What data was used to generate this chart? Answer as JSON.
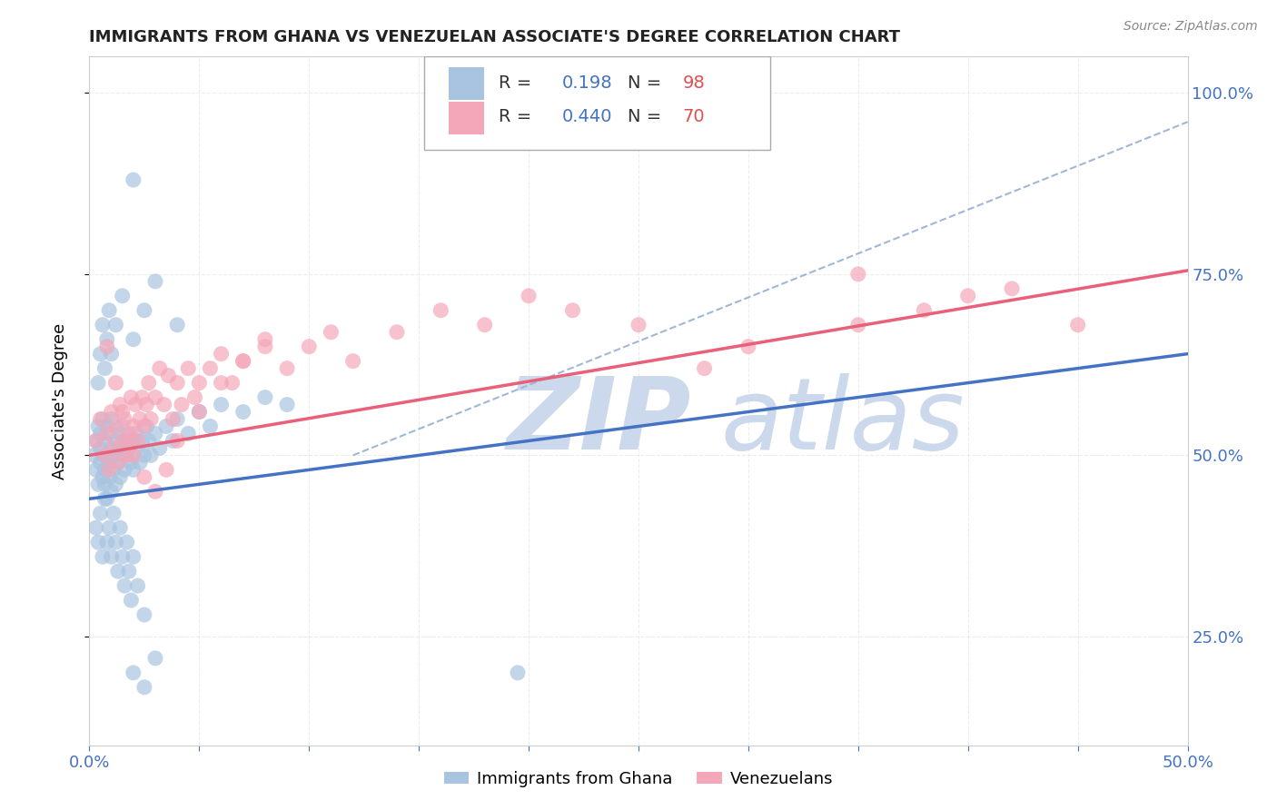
{
  "title": "IMMIGRANTS FROM GHANA VS VENEZUELAN ASSOCIATE'S DEGREE CORRELATION CHART",
  "source": "Source: ZipAtlas.com",
  "ylabel": "Associate's Degree",
  "yticks": [
    "25.0%",
    "50.0%",
    "75.0%",
    "100.0%"
  ],
  "ytick_vals": [
    0.25,
    0.5,
    0.75,
    1.0
  ],
  "xlim": [
    0.0,
    0.5
  ],
  "ylim": [
    0.1,
    1.05
  ],
  "ghana_color": "#a8c4e0",
  "venezuela_color": "#f4a7b9",
  "ghana_line_color": "#4472c4",
  "venezuela_line_color": "#e8607a",
  "dashed_line_color": "#a0b8d8",
  "ghana_R": 0.198,
  "ghana_N": 98,
  "venezuela_R": 0.44,
  "venezuela_N": 70,
  "legend_R_color": "#4472c4",
  "legend_N_color": "#e05050",
  "background_color": "#ffffff",
  "grid_color": "#e8e8e8",
  "tick_color": "#4472c4",
  "watermark_zip": "ZIP",
  "watermark_atlas": "atlas",
  "watermark_color": "#ccd9ec",
  "ghana_scatter_x": [
    0.002,
    0.003,
    0.003,
    0.004,
    0.004,
    0.005,
    0.005,
    0.005,
    0.006,
    0.006,
    0.006,
    0.007,
    0.007,
    0.007,
    0.008,
    0.008,
    0.008,
    0.009,
    0.009,
    0.009,
    0.01,
    0.01,
    0.01,
    0.011,
    0.011,
    0.012,
    0.012,
    0.013,
    0.013,
    0.014,
    0.014,
    0.015,
    0.015,
    0.016,
    0.016,
    0.017,
    0.018,
    0.019,
    0.02,
    0.02,
    0.021,
    0.022,
    0.023,
    0.024,
    0.025,
    0.026,
    0.027,
    0.028,
    0.03,
    0.032,
    0.035,
    0.038,
    0.04,
    0.045,
    0.05,
    0.055,
    0.06,
    0.07,
    0.08,
    0.09,
    0.003,
    0.004,
    0.005,
    0.006,
    0.007,
    0.008,
    0.009,
    0.01,
    0.011,
    0.012,
    0.013,
    0.014,
    0.015,
    0.016,
    0.017,
    0.018,
    0.019,
    0.02,
    0.022,
    0.025,
    0.004,
    0.005,
    0.006,
    0.007,
    0.008,
    0.009,
    0.01,
    0.012,
    0.015,
    0.02,
    0.025,
    0.03,
    0.04,
    0.02,
    0.025,
    0.03,
    0.02,
    0.195
  ],
  "ghana_scatter_y": [
    0.5,
    0.52,
    0.48,
    0.54,
    0.46,
    0.51,
    0.49,
    0.53,
    0.5,
    0.47,
    0.55,
    0.48,
    0.52,
    0.46,
    0.5,
    0.54,
    0.44,
    0.49,
    0.53,
    0.47,
    0.51,
    0.55,
    0.45,
    0.5,
    0.48,
    0.52,
    0.46,
    0.51,
    0.49,
    0.53,
    0.47,
    0.5,
    0.54,
    0.48,
    0.52,
    0.5,
    0.51,
    0.49,
    0.52,
    0.48,
    0.53,
    0.51,
    0.49,
    0.52,
    0.5,
    0.54,
    0.52,
    0.5,
    0.53,
    0.51,
    0.54,
    0.52,
    0.55,
    0.53,
    0.56,
    0.54,
    0.57,
    0.56,
    0.58,
    0.57,
    0.4,
    0.38,
    0.42,
    0.36,
    0.44,
    0.38,
    0.4,
    0.36,
    0.42,
    0.38,
    0.34,
    0.4,
    0.36,
    0.32,
    0.38,
    0.34,
    0.3,
    0.36,
    0.32,
    0.28,
    0.6,
    0.64,
    0.68,
    0.62,
    0.66,
    0.7,
    0.64,
    0.68,
    0.72,
    0.66,
    0.7,
    0.74,
    0.68,
    0.2,
    0.18,
    0.22,
    0.88,
    0.2
  ],
  "venezuela_scatter_x": [
    0.003,
    0.005,
    0.007,
    0.008,
    0.009,
    0.01,
    0.011,
    0.012,
    0.013,
    0.014,
    0.015,
    0.016,
    0.017,
    0.018,
    0.019,
    0.02,
    0.021,
    0.022,
    0.023,
    0.024,
    0.025,
    0.026,
    0.027,
    0.028,
    0.03,
    0.032,
    0.034,
    0.036,
    0.038,
    0.04,
    0.042,
    0.045,
    0.048,
    0.05,
    0.055,
    0.06,
    0.065,
    0.07,
    0.08,
    0.09,
    0.1,
    0.11,
    0.12,
    0.14,
    0.16,
    0.18,
    0.2,
    0.22,
    0.25,
    0.3,
    0.008,
    0.012,
    0.015,
    0.018,
    0.02,
    0.025,
    0.03,
    0.035,
    0.04,
    0.05,
    0.06,
    0.07,
    0.08,
    0.35,
    0.4,
    0.45,
    0.38,
    0.42,
    0.35,
    0.28
  ],
  "venezuela_scatter_y": [
    0.52,
    0.55,
    0.5,
    0.53,
    0.48,
    0.56,
    0.51,
    0.54,
    0.49,
    0.57,
    0.52,
    0.55,
    0.5,
    0.53,
    0.58,
    0.54,
    0.57,
    0.52,
    0.55,
    0.58,
    0.54,
    0.57,
    0.6,
    0.55,
    0.58,
    0.62,
    0.57,
    0.61,
    0.55,
    0.6,
    0.57,
    0.62,
    0.58,
    0.6,
    0.62,
    0.64,
    0.6,
    0.63,
    0.65,
    0.62,
    0.65,
    0.67,
    0.63,
    0.67,
    0.7,
    0.68,
    0.72,
    0.7,
    0.68,
    0.65,
    0.65,
    0.6,
    0.56,
    0.52,
    0.5,
    0.47,
    0.45,
    0.48,
    0.52,
    0.56,
    0.6,
    0.63,
    0.66,
    0.75,
    0.72,
    0.68,
    0.7,
    0.73,
    0.68,
    0.62
  ]
}
